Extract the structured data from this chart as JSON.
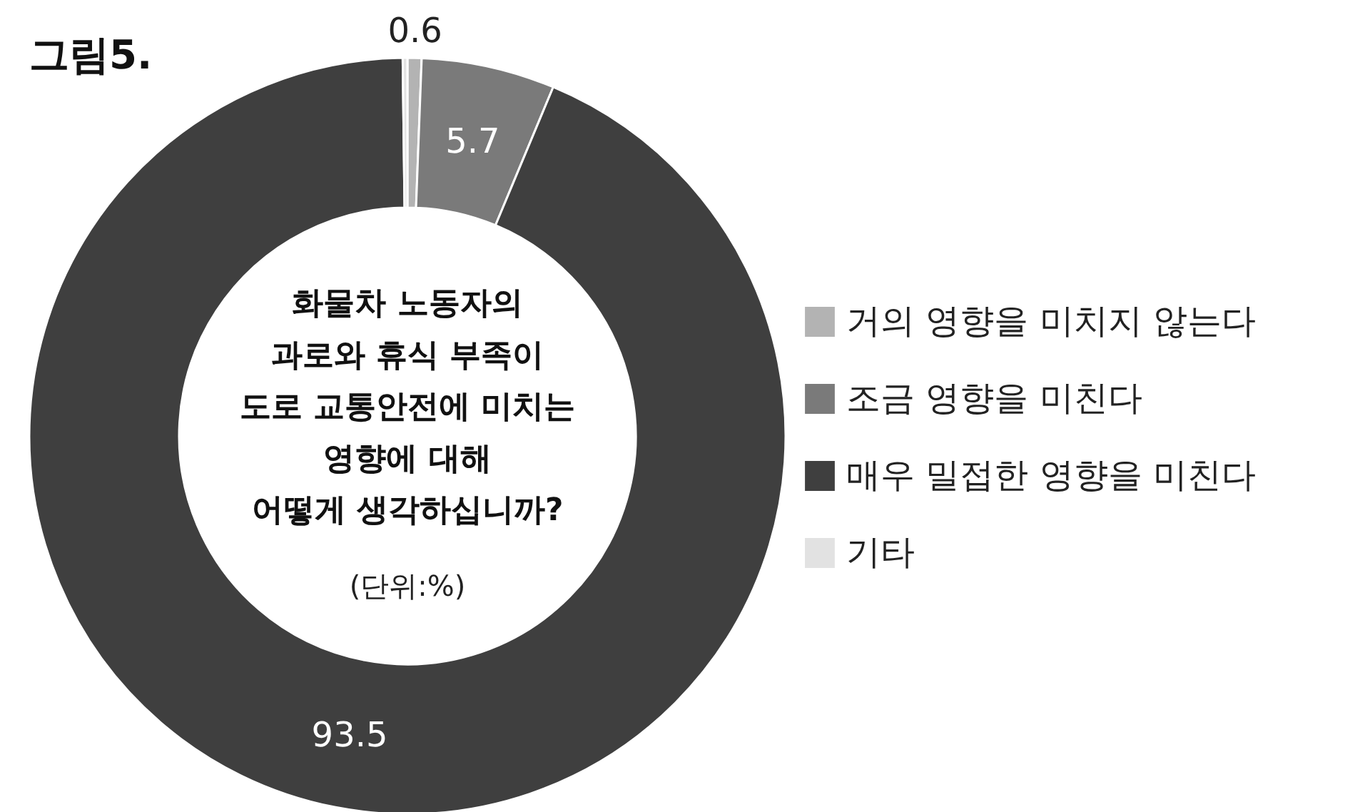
{
  "chart_data": {
    "type": "donut",
    "title": "그림5.",
    "subtitle": "화물차 노동자의\n과로와 휴식 부족이\n도로 교통안전에 미치는\n영향에 대해\n어떻게 생각하십니까?",
    "annotations": [
      "(단위:%)"
    ],
    "categories": [
      "거의 영향을 미치지 않는다",
      "조금 영향을 미친다",
      "매우 밀접한 영향을 미친다",
      "기타"
    ],
    "values": [
      0.6,
      5.7,
      93.5,
      0.2
    ],
    "colors": [
      "#b3b3b3",
      "#7a7a7a",
      "#3f3f3f",
      "#e2e2e2"
    ],
    "value_labels": [
      "0.6",
      "5.7",
      "93.5",
      null
    ],
    "legend": "right"
  }
}
